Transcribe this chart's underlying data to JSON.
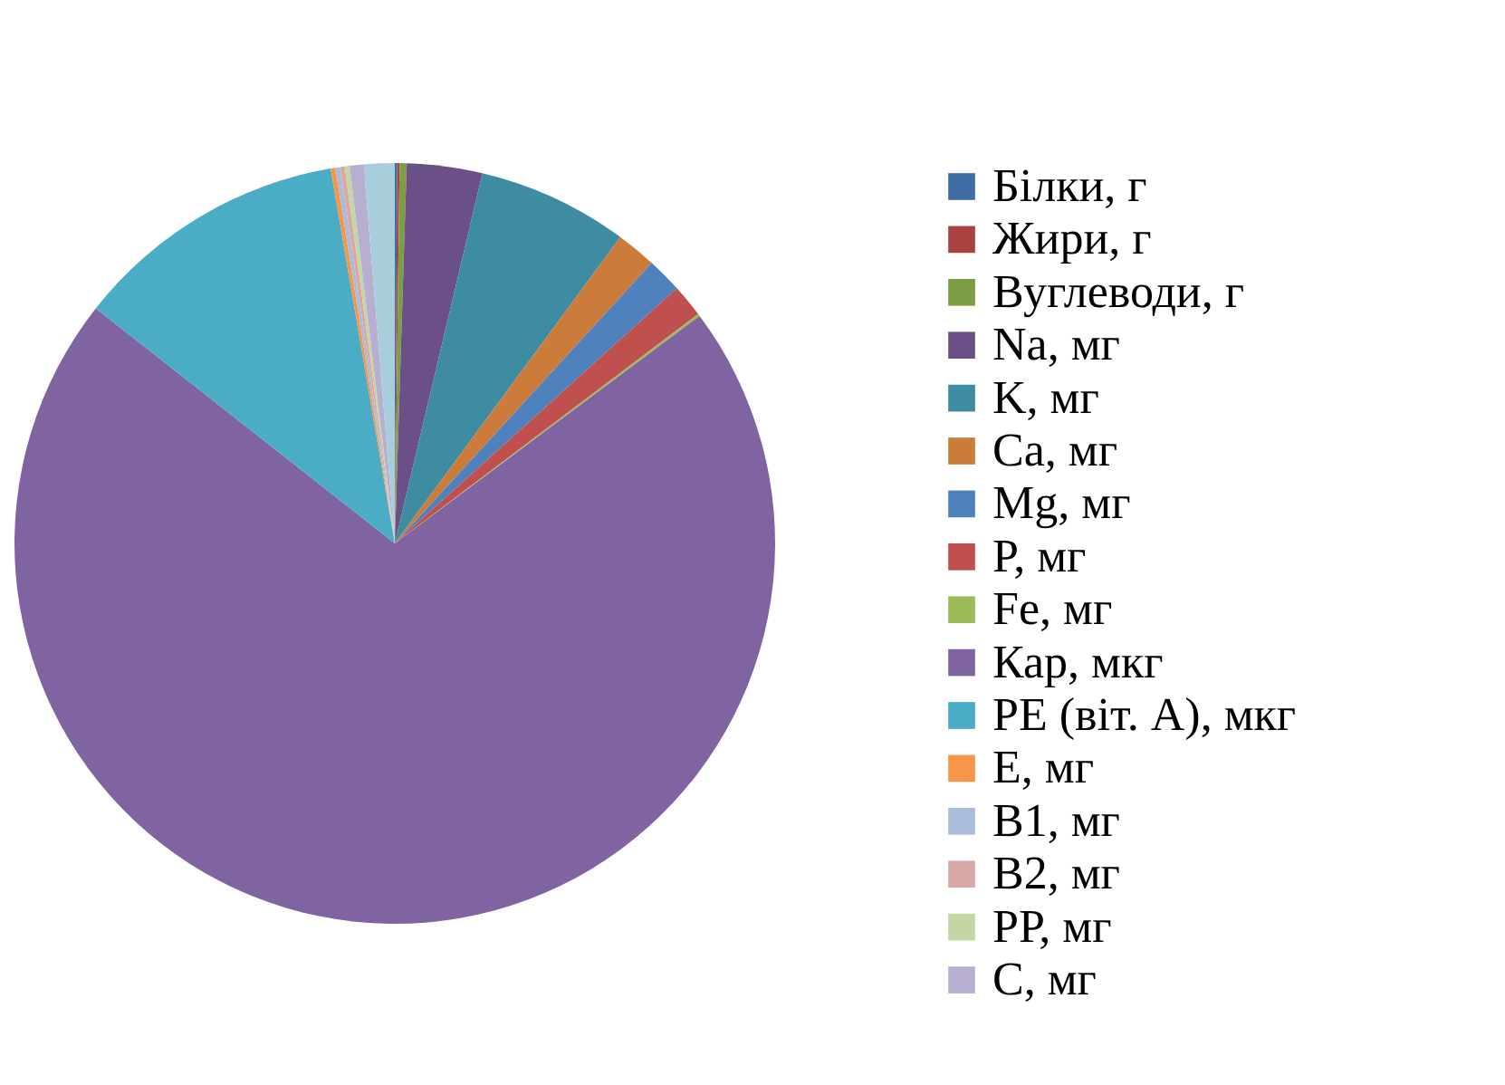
{
  "chart_data": {
    "type": "pie",
    "categories": [
      "Білки, г",
      "Жири, г",
      "Вуглеводи, г",
      "Na, мг",
      "K, мг",
      "Ca, мг",
      "Mg, мг",
      "P, мг",
      "Fe, мг",
      "Кар, мкг",
      "РЕ (віт. А), мкг",
      "Е, мг",
      "В1, мг",
      "В2, мг",
      "РР, мг",
      "С, мг",
      null
    ],
    "values": [
      0.1,
      0.1,
      0.3,
      3.2,
      6.4,
      1.7,
      1.5,
      1.4,
      0.1,
      70.8,
      11.7,
      0.2,
      0.2,
      0.2,
      0.2,
      0.6,
      1.3
    ],
    "colors": [
      "#3f6ea6",
      "#a9423f",
      "#7e9e45",
      "#6a5087",
      "#3d8ca2",
      "#cc7c3a",
      "#4f81bd",
      "#c0504d",
      "#9bbb59",
      "#8064a2",
      "#4bacc6",
      "#f79646",
      "#a9bcd9",
      "#d9a9a8",
      "#c3d6a4",
      "#b8aed0",
      "#a8cedc"
    ],
    "legend": "right"
  }
}
